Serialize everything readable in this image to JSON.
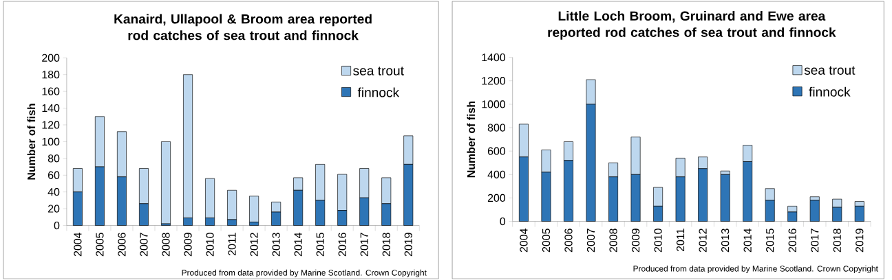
{
  "chart_data": [
    {
      "type": "bar",
      "stacked": true,
      "title": "Kanaird, Ullapool & Broom area reported rod catches of sea trout and finnock",
      "ylabel": "Number of fish",
      "categories": [
        "2004",
        "2005",
        "2006",
        "2007",
        "2008",
        "2009",
        "2010",
        "2011",
        "2012",
        "2013",
        "2014",
        "2015",
        "2016",
        "2017",
        "2018",
        "2019"
      ],
      "series": [
        {
          "name": "finnock",
          "color": "#2e75b6",
          "values": [
            40,
            70,
            58,
            26,
            2,
            9,
            9,
            7,
            4,
            16,
            42,
            30,
            18,
            33,
            26,
            73
          ]
        },
        {
          "name": "sea trout",
          "color": "#bdd7ee",
          "values": [
            28,
            60,
            54,
            42,
            98,
            171,
            47,
            35,
            31,
            12,
            15,
            43,
            43,
            35,
            31,
            34
          ]
        }
      ],
      "ylim": [
        0,
        200
      ],
      "yticks": [
        0,
        20,
        40,
        60,
        80,
        100,
        120,
        140,
        160,
        180,
        200
      ],
      "legend": "top right",
      "annotations": [
        "Produced from data provided by Marine Scotland. Crown Copyright"
      ]
    },
    {
      "type": "bar",
      "stacked": true,
      "title": "Little Loch Broom, Gruinard and Ewe area reported rod catches of sea trout and finnock",
      "ylabel": "Number of fish",
      "categories": [
        "2004",
        "2005",
        "2006",
        "2007",
        "2008",
        "2009",
        "2010",
        "2011",
        "2012",
        "2013",
        "2014",
        "2015",
        "2016",
        "2017",
        "2018",
        "2019"
      ],
      "series": [
        {
          "name": "finnock",
          "color": "#2e75b6",
          "values": [
            550,
            420,
            520,
            1000,
            380,
            400,
            130,
            380,
            450,
            400,
            510,
            180,
            80,
            180,
            120,
            130
          ]
        },
        {
          "name": "sea trout",
          "color": "#bdd7ee",
          "values": [
            280,
            190,
            160,
            210,
            120,
            320,
            160,
            160,
            100,
            30,
            140,
            100,
            50,
            30,
            70,
            40
          ]
        }
      ],
      "ylim": [
        0,
        1400
      ],
      "yticks": [
        0,
        200,
        400,
        600,
        800,
        1000,
        1200,
        1400
      ],
      "legend": "top right",
      "annotations": [
        "Produced from data provided by Marine Scotland. Crown Copyright"
      ]
    }
  ]
}
